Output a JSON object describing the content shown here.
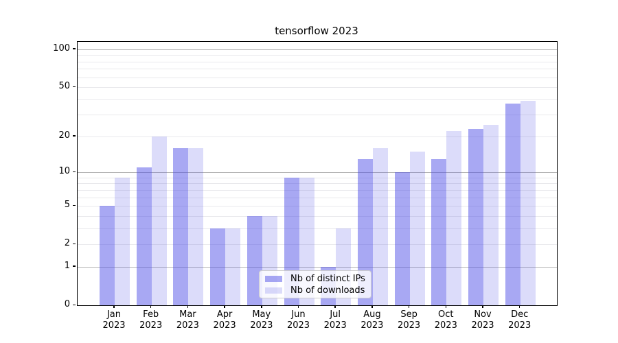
{
  "chart_data": {
    "type": "bar",
    "title": "tensorflow 2023",
    "categories": [
      "Jan",
      "Feb",
      "Mar",
      "Apr",
      "May",
      "Jun",
      "Jul",
      "Aug",
      "Sep",
      "Oct",
      "Nov",
      "Dec"
    ],
    "category_sublabel": "2023",
    "series": [
      {
        "name": "Nb of distinct IPs",
        "values": [
          5,
          11,
          16,
          3,
          4,
          9,
          1,
          13,
          10,
          13,
          23,
          37
        ],
        "color": "rgba(70,70,230,0.47)"
      },
      {
        "name": "Nb of downloads",
        "values": [
          9,
          20,
          16,
          3,
          4,
          9,
          3,
          16,
          15,
          22,
          25,
          39
        ],
        "color": "rgba(70,70,230,0.19)"
      }
    ],
    "xlabel": "",
    "ylabel": "",
    "yscale": "log1p",
    "ylim": [
      0,
      114.5
    ],
    "yticks": [
      0,
      1,
      2,
      5,
      10,
      20,
      50,
      100
    ],
    "major_gridlines": [
      1,
      10,
      100
    ],
    "minor_gridlines": [
      2,
      3,
      4,
      5,
      6,
      7,
      8,
      9,
      20,
      30,
      40,
      50,
      60,
      70,
      80,
      90
    ],
    "grid": true,
    "legend_position": "lower center",
    "colors": {
      "bar_dark": "rgba(70,70,230,0.47)",
      "bar_light": "rgba(70,70,230,0.19)",
      "major_grid": "#b3b3b3",
      "minor_grid": "#e9e9ec",
      "spine": "#000000",
      "background": "#ffffff"
    }
  }
}
